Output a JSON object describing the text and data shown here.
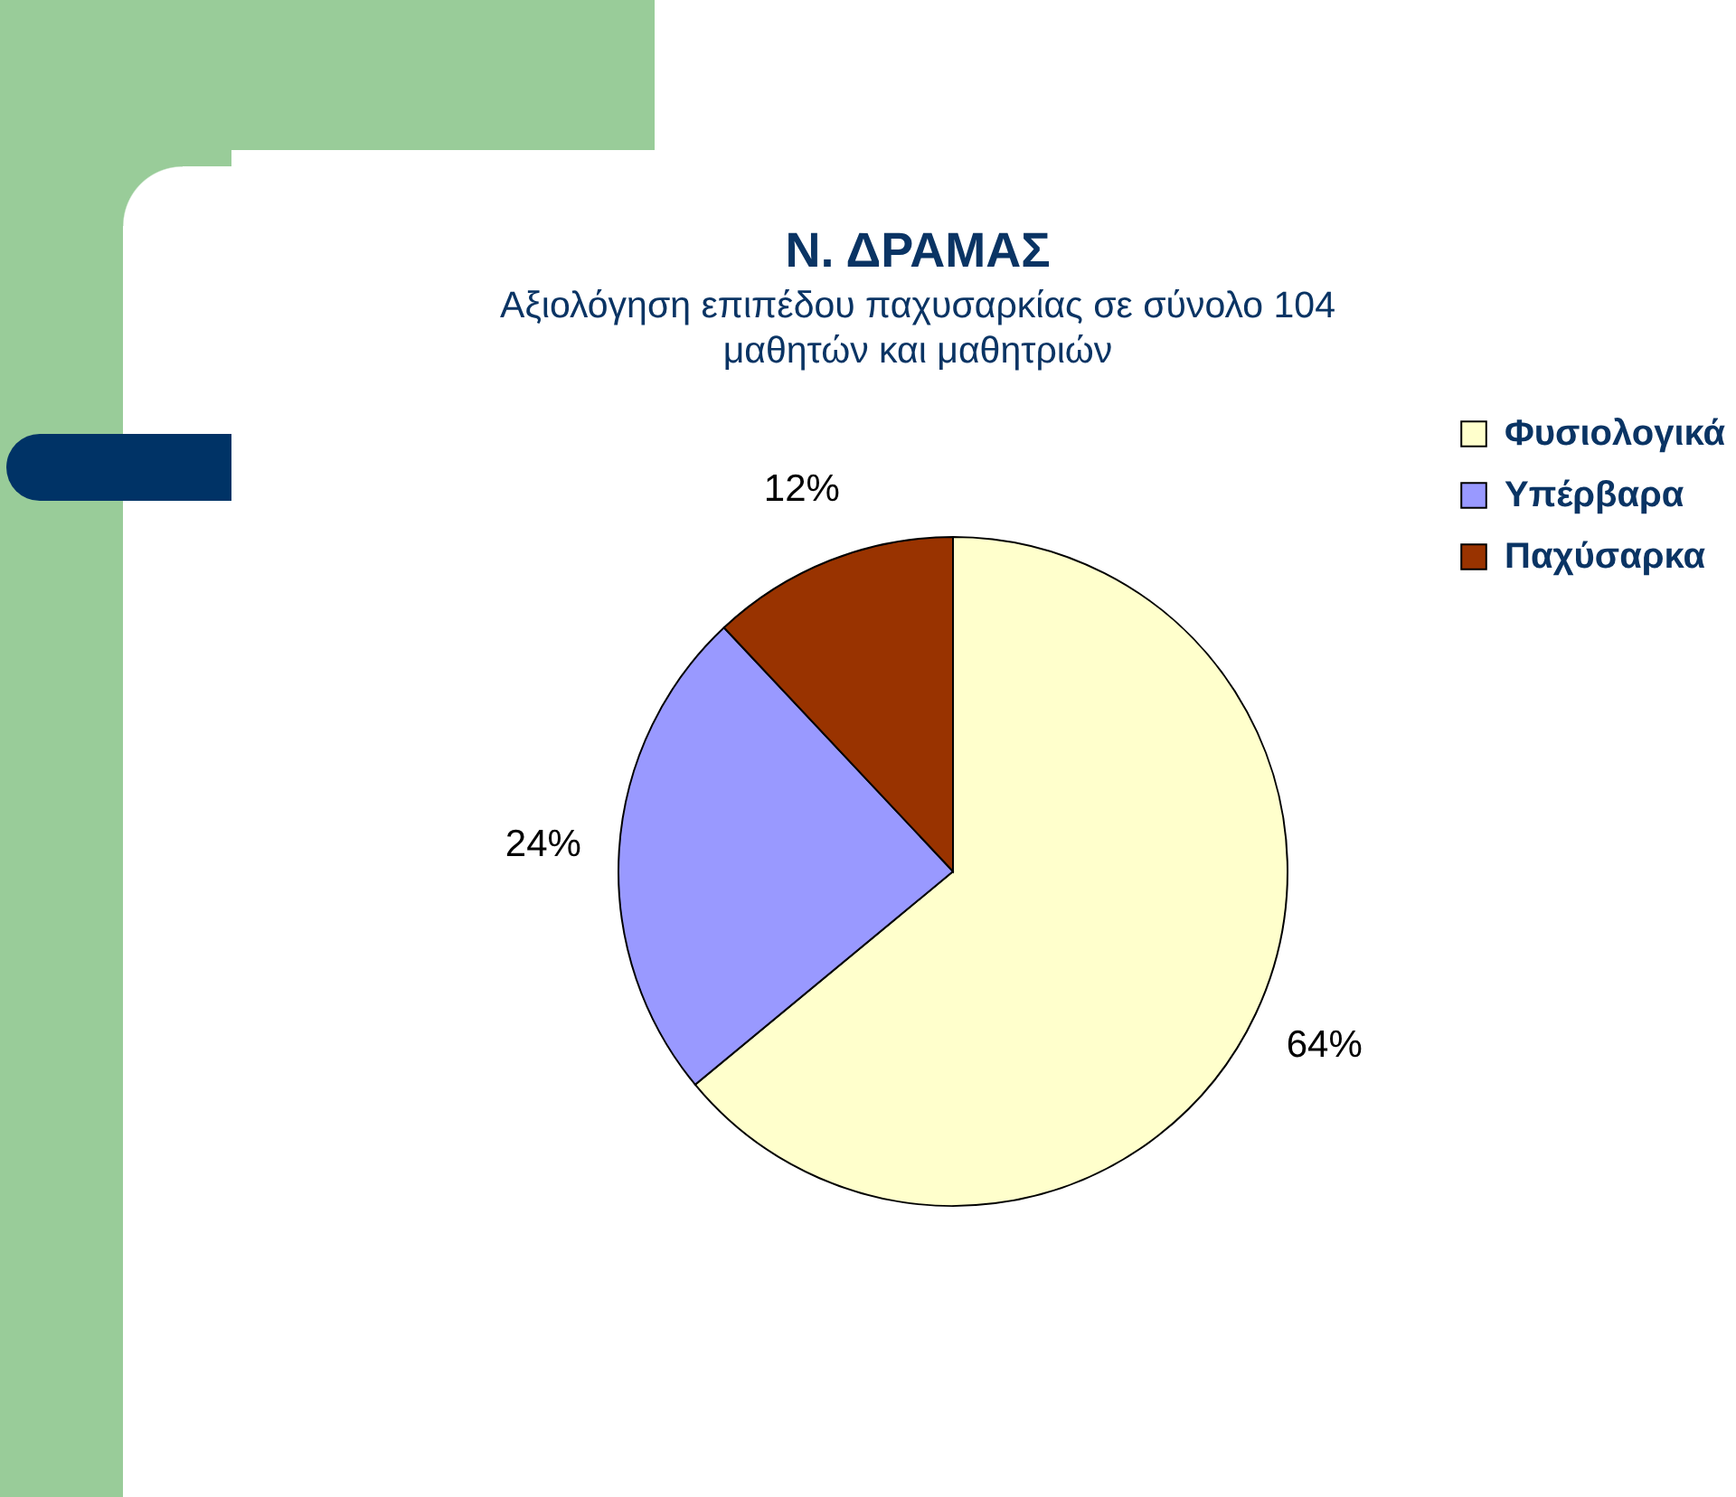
{
  "chart_data": {
    "type": "pie",
    "title": "Ν. ΔΡΑΜΑΣ",
    "subtitle": "Αξιολόγηση επιπέδου παχυσαρκίας σε σύνολο 104 μαθητών και μαθητριών",
    "categories": [
      "Φυσιολογικά",
      "Υπέρβαρα",
      "Παχύσαρκα"
    ],
    "values": [
      64,
      24,
      12
    ],
    "colors": [
      "#ffffcc",
      "#9999ff",
      "#993300"
    ],
    "value_labels": [
      "64%",
      "24%",
      "12%"
    ],
    "legend": "top right"
  }
}
